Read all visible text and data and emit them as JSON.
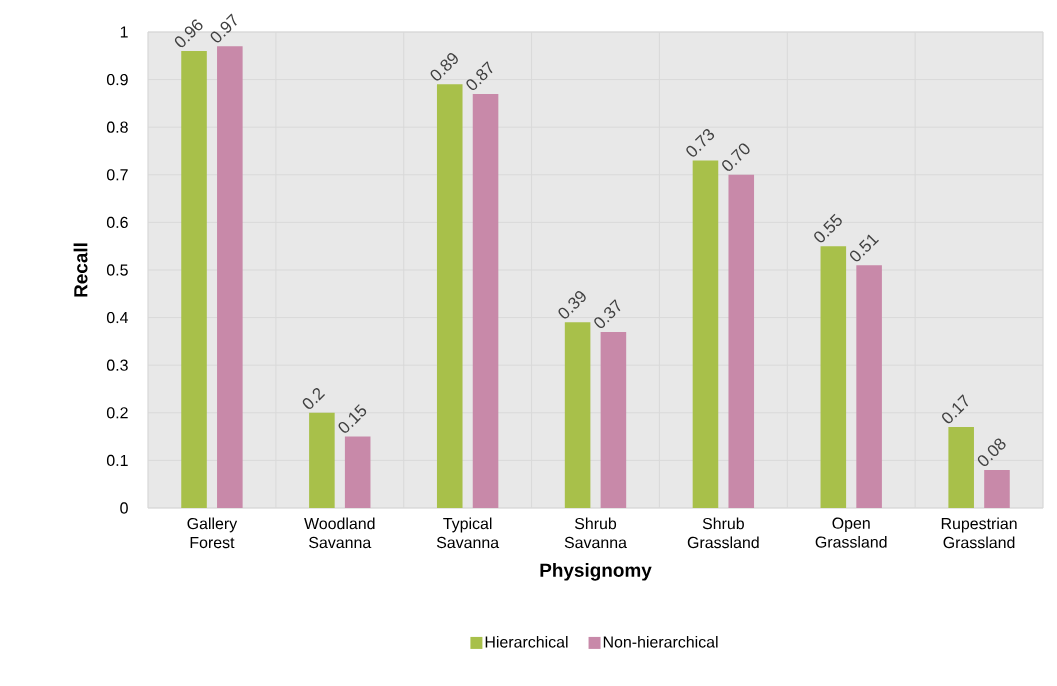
{
  "chart_data": {
    "type": "bar",
    "xlabel": "Physignomy",
    "ylabel": "Recall",
    "categories": [
      "Gallery Forest",
      "Woodland Savanna",
      "Typical Savanna",
      "Shrub Savanna",
      "Shrub Grassland",
      "Open Grassland",
      "Rupestrian Grassland"
    ],
    "series": [
      {
        "name": "Hierarchical",
        "color": "#a8c04a",
        "values": [
          0.96,
          0.2,
          0.89,
          0.39,
          0.73,
          0.55,
          0.17
        ],
        "value_labels": [
          "0.96",
          "0.2",
          "0.89",
          "0.39",
          "0.73",
          "0.55",
          "0.17"
        ]
      },
      {
        "name": "Non-hierarchical",
        "color": "#c889a9",
        "values": [
          0.97,
          0.15,
          0.87,
          0.37,
          0.7,
          0.51,
          0.08
        ],
        "value_labels": [
          "0.97",
          "0.15",
          "0.87",
          "0.37",
          "0.70",
          "0.51",
          "0.08"
        ]
      }
    ],
    "ylim": [
      0,
      1
    ],
    "yticks": [
      0,
      0.1,
      0.2,
      0.3,
      0.4,
      0.5,
      0.6,
      0.7,
      0.8,
      0.9,
      1
    ],
    "grid": true,
    "legend": "bottom"
  }
}
